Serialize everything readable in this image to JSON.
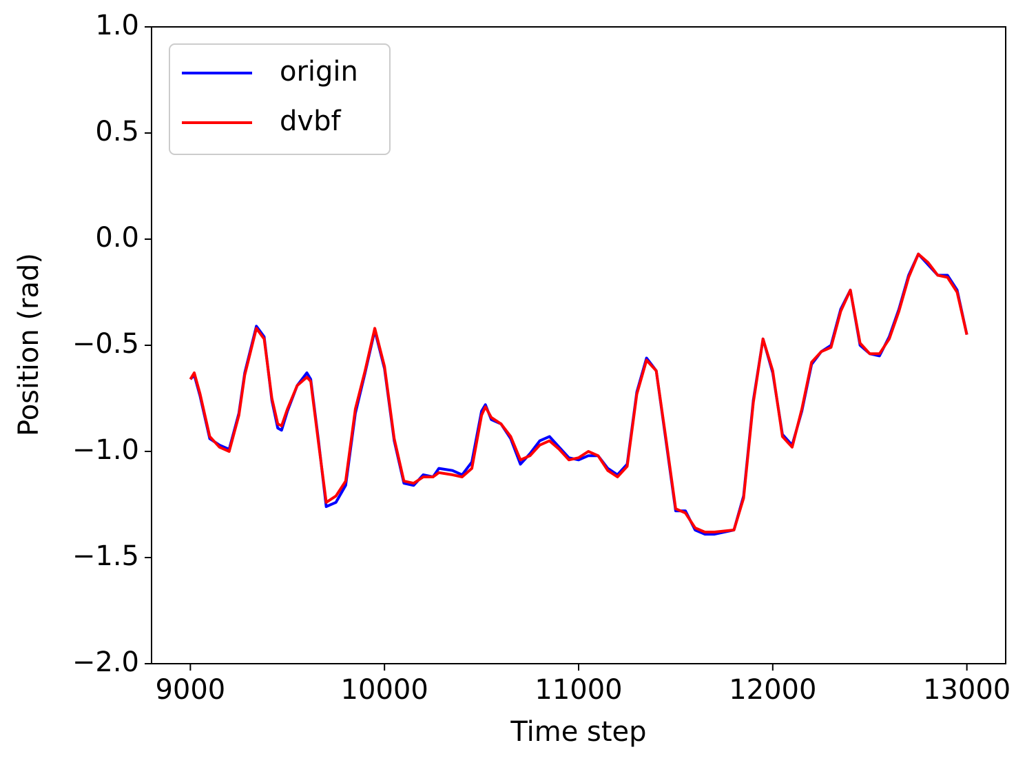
{
  "chart_data": {
    "type": "line",
    "x_label": "Time step",
    "y_label": "Position (rad)",
    "x": [
      9000,
      9020,
      9050,
      9100,
      9150,
      9200,
      9250,
      9280,
      9340,
      9380,
      9420,
      9450,
      9470,
      9500,
      9550,
      9600,
      9620,
      9660,
      9700,
      9750,
      9800,
      9850,
      9900,
      9950,
      10000,
      10050,
      10100,
      10150,
      10200,
      10250,
      10280,
      10350,
      10400,
      10450,
      10500,
      10520,
      10550,
      10600,
      10650,
      10700,
      10750,
      10800,
      10850,
      10900,
      10950,
      11000,
      11050,
      11100,
      11150,
      11200,
      11250,
      11300,
      11350,
      11400,
      11450,
      11500,
      11550,
      11600,
      11650,
      11700,
      11800,
      11850,
      11900,
      11950,
      12000,
      12050,
      12100,
      12150,
      12200,
      12250,
      12300,
      12350,
      12400,
      12450,
      12500,
      12550,
      12600,
      12650,
      12700,
      12750,
      12800,
      12850,
      12900,
      12950,
      13000
    ],
    "series": [
      {
        "name": "origin",
        "color": "#0000ff",
        "values": [
          -0.66,
          -0.64,
          -0.74,
          -0.94,
          -0.97,
          -0.99,
          -0.82,
          -0.63,
          -0.41,
          -0.46,
          -0.76,
          -0.89,
          -0.9,
          -0.81,
          -0.69,
          -0.63,
          -0.66,
          -0.95,
          -1.26,
          -1.24,
          -1.16,
          -0.82,
          -0.63,
          -0.43,
          -0.61,
          -0.95,
          -1.15,
          -1.16,
          -1.11,
          -1.12,
          -1.08,
          -1.09,
          -1.11,
          -1.05,
          -0.81,
          -0.78,
          -0.85,
          -0.87,
          -0.94,
          -1.06,
          -1.01,
          -0.95,
          -0.93,
          -0.98,
          -1.03,
          -1.04,
          -1.02,
          -1.02,
          -1.08,
          -1.11,
          -1.06,
          -0.72,
          -0.56,
          -0.62,
          -0.95,
          -1.28,
          -1.28,
          -1.37,
          -1.39,
          -1.39,
          -1.37,
          -1.21,
          -0.76,
          -0.47,
          -0.63,
          -0.92,
          -0.97,
          -0.81,
          -0.59,
          -0.53,
          -0.5,
          -0.33,
          -0.24,
          -0.5,
          -0.54,
          -0.55,
          -0.46,
          -0.33,
          -0.17,
          -0.07,
          -0.12,
          -0.17,
          -0.17,
          -0.24,
          -0.45
        ]
      },
      {
        "name": "dvbf",
        "color": "#ff0000",
        "values": [
          -0.66,
          -0.63,
          -0.73,
          -0.93,
          -0.98,
          -1.0,
          -0.83,
          -0.64,
          -0.42,
          -0.47,
          -0.75,
          -0.87,
          -0.88,
          -0.8,
          -0.69,
          -0.65,
          -0.67,
          -0.96,
          -1.24,
          -1.21,
          -1.14,
          -0.8,
          -0.62,
          -0.42,
          -0.6,
          -0.94,
          -1.14,
          -1.15,
          -1.12,
          -1.12,
          -1.1,
          -1.11,
          -1.12,
          -1.08,
          -0.83,
          -0.79,
          -0.84,
          -0.87,
          -0.93,
          -1.04,
          -1.02,
          -0.97,
          -0.95,
          -0.99,
          -1.04,
          -1.03,
          -1.0,
          -1.02,
          -1.09,
          -1.12,
          -1.07,
          -0.73,
          -0.57,
          -0.62,
          -0.94,
          -1.27,
          -1.29,
          -1.36,
          -1.38,
          -1.38,
          -1.37,
          -1.22,
          -0.77,
          -0.47,
          -0.62,
          -0.93,
          -0.98,
          -0.8,
          -0.58,
          -0.53,
          -0.51,
          -0.34,
          -0.24,
          -0.49,
          -0.54,
          -0.54,
          -0.47,
          -0.34,
          -0.18,
          -0.07,
          -0.11,
          -0.17,
          -0.18,
          -0.25,
          -0.45
        ]
      }
    ],
    "xlim": [
      8800,
      13200
    ],
    "xticks": [
      9000,
      10000,
      11000,
      12000,
      13000
    ],
    "ylim": [
      -2,
      1
    ],
    "yticks": [
      {
        "value": -2,
        "label": "−2.0"
      },
      {
        "value": -1.5,
        "label": "−1.5"
      },
      {
        "value": -1,
        "label": "−1.0"
      },
      {
        "value": -0.5,
        "label": "−0.5"
      },
      {
        "value": 0,
        "label": "0.0"
      },
      {
        "value": 0.5,
        "label": "0.5"
      },
      {
        "value": 1,
        "label": "1.0"
      }
    ],
    "grid": false,
    "legend": "upper left"
  }
}
